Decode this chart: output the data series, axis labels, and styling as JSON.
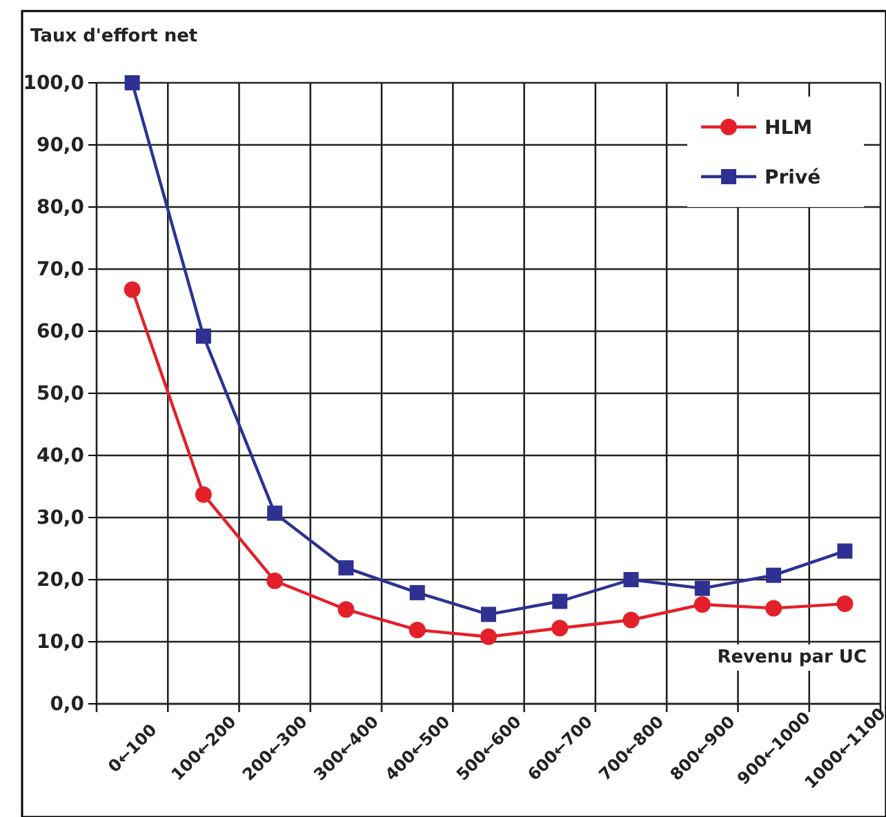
{
  "chart_data": {
    "type": "line",
    "ylabel": "Taux d'effort net",
    "xlabel": "Revenu par UC",
    "categories": [
      "0←100",
      "100←200",
      "200←300",
      "300←400",
      "400←500",
      "500←600",
      "600←700",
      "700←800",
      "800←900",
      "900←1000",
      "1000←1100"
    ],
    "series": [
      {
        "name": "HLM",
        "color": "#e3202a",
        "marker": "circle",
        "values": [
          66.7,
          33.7,
          19.8,
          15.2,
          11.9,
          10.8,
          12.2,
          13.5,
          16.0,
          15.4,
          16.1
        ]
      },
      {
        "name": "Privé",
        "color": "#2e3192",
        "marker": "square",
        "values": [
          100,
          59.2,
          30.7,
          21.9,
          17.9,
          14.4,
          16.5,
          20.0,
          18.6,
          20.7,
          24.6
        ]
      }
    ],
    "ylim": [
      0,
      100
    ],
    "yticks": [
      {
        "value": 0,
        "label": "0,0"
      },
      {
        "value": 10,
        "label": "10,0"
      },
      {
        "value": 20,
        "label": "20,0"
      },
      {
        "value": 30,
        "label": "30,0"
      },
      {
        "value": 40,
        "label": "40,0"
      },
      {
        "value": 50,
        "label": "50,0"
      },
      {
        "value": 60,
        "label": "60,0"
      },
      {
        "value": 70,
        "label": "70,0"
      },
      {
        "value": 80,
        "label": "80,0"
      },
      {
        "value": 90,
        "label": "90,0"
      },
      {
        "value": 100,
        "label": "100,0"
      }
    ],
    "grid": true,
    "legend": "top right",
    "line_style": "solid"
  }
}
